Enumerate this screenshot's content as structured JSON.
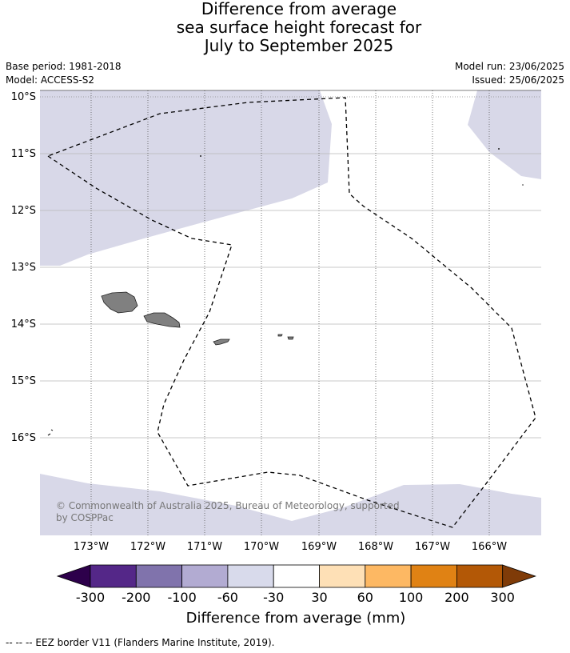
{
  "header": {
    "title_lines": [
      "Difference from average",
      "sea surface height forecast for",
      "July to September 2025"
    ],
    "base_period": "Base period: 1981-2018",
    "model": "Model: ACCESS-S2",
    "model_run": "Model run: 23/06/2025",
    "issued": "Issued: 25/06/2025"
  },
  "map": {
    "lat_labels": [
      "10°S",
      "11°S",
      "12°S",
      "13°S",
      "14°S",
      "15°S",
      "16°S"
    ],
    "lon_labels": [
      "173°W",
      "172°W",
      "171°W",
      "170°W",
      "169°W",
      "168°W",
      "167°W",
      "166°W"
    ],
    "copyright": "© Commonwealth of Australia 2025, Bureau of Meteorology, supported by COSPPac",
    "land_color": "#808080",
    "anomaly_fill_color": "#d8d8e8"
  },
  "colorbar": {
    "tick_labels": [
      "-300",
      "-200",
      "-100",
      "-60",
      "-30",
      "30",
      "60",
      "100",
      "200",
      "300"
    ],
    "colors": [
      "#2d004b",
      "#542788",
      "#8073ac",
      "#b2abd2",
      "#d8daeb",
      "#ffffff",
      "#fee0b6",
      "#fdb863",
      "#e08214",
      "#b35806",
      "#7f3b08"
    ],
    "label": "Difference from average (mm)"
  },
  "footer": {
    "legend_text": "--  --  -- EEZ border V11 (Flanders Marine Institute, 2019)."
  }
}
